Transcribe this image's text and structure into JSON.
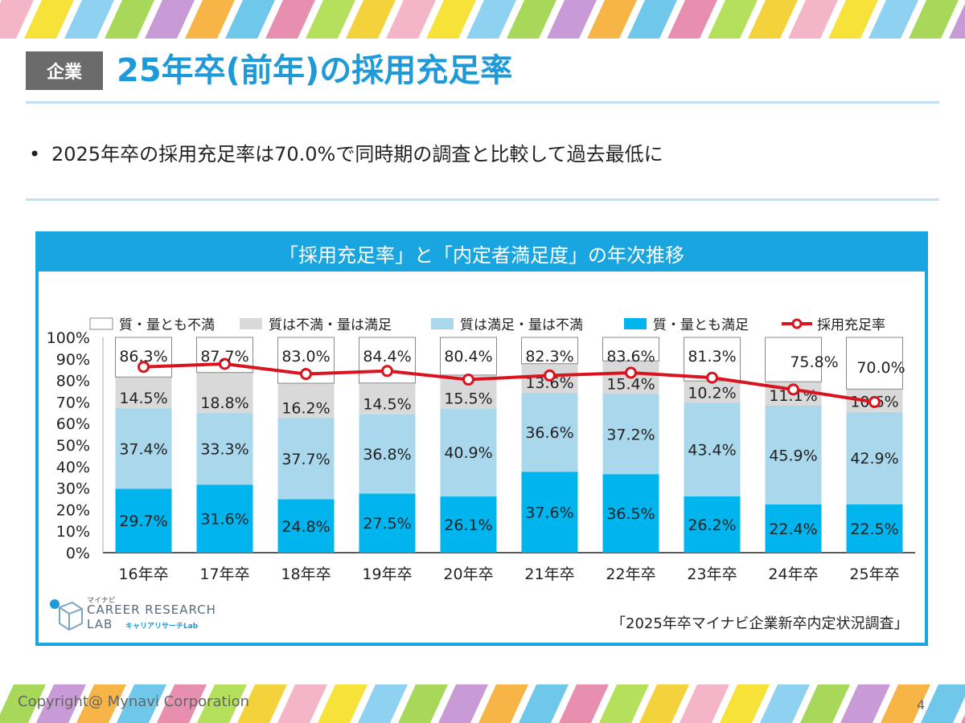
{
  "header": {
    "tag": "企業",
    "title": "25年卒(前年)の採用充足率"
  },
  "bullet": {
    "marker": "•",
    "text": "2025年卒の採用充足率は70.0%で同時期の調査と比較して過去最低に"
  },
  "footer": {
    "copyright": "Copyright@ Mynavi Corporation",
    "page": "4"
  },
  "logo": {
    "small": "マイナビ",
    "line1": "CAREER RESEARCH",
    "line2": "LAB",
    "sub": "キャリアリサーチLab"
  },
  "chart_data": {
    "type": "bar",
    "stacked": true,
    "title": "「採用充足率」と「内定者満足度」の年次推移",
    "source": "「2025年卒マイナビ企業新卒内定状況調査」",
    "categories": [
      "16年卒",
      "17年卒",
      "18年卒",
      "19年卒",
      "20年卒",
      "21年卒",
      "22年卒",
      "23年卒",
      "24年卒",
      "25年卒"
    ],
    "ylim": [
      0,
      100
    ],
    "yticks": [
      "0%",
      "10%",
      "20%",
      "30%",
      "40%",
      "50%",
      "60%",
      "70%",
      "80%",
      "90%",
      "100%"
    ],
    "legend_position": "top",
    "series": [
      {
        "name": "質・量とも満足",
        "color": "#00b4ee",
        "values": [
          29.7,
          31.6,
          24.8,
          27.5,
          26.1,
          37.6,
          36.5,
          26.2,
          22.4,
          22.5
        ],
        "labels": [
          "29.7%",
          "31.6%",
          "24.8%",
          "27.5%",
          "26.1%",
          "37.6%",
          "36.5%",
          "26.2%",
          "22.4%",
          "22.5%"
        ]
      },
      {
        "name": "質は満足・量は不満",
        "color": "#a9d8ec",
        "values": [
          37.4,
          33.3,
          37.7,
          36.8,
          40.9,
          36.6,
          37.2,
          43.4,
          45.9,
          42.9
        ],
        "labels": [
          "37.4%",
          "33.3%",
          "37.7%",
          "36.8%",
          "40.9%",
          "36.6%",
          "37.2%",
          "43.4%",
          "45.9%",
          "42.9%"
        ]
      },
      {
        "name": "質は不満・量は満足",
        "color": "#d9d9d9",
        "values": [
          14.5,
          18.8,
          16.2,
          14.5,
          15.5,
          13.6,
          15.4,
          10.2,
          11.1,
          10.6
        ],
        "labels": [
          "14.5%",
          "18.8%",
          "16.2%",
          "14.5%",
          "15.5%",
          "13.6%",
          "15.4%",
          "10.2%",
          "11.1%",
          "10.6%"
        ]
      },
      {
        "name": "質・量とも不満",
        "color": "#ffffff",
        "values": [
          18.4,
          16.3,
          21.3,
          21.2,
          17.5,
          12.2,
          10.9,
          20.2,
          20.6,
          24.0
        ]
      }
    ],
    "line": {
      "name": "採用充足率",
      "color": "#d9141e",
      "values": [
        86.3,
        87.7,
        83.0,
        84.4,
        80.4,
        82.3,
        83.6,
        81.3,
        75.8,
        70.0
      ],
      "labels": [
        "86.3%",
        "87.7%",
        "83.0%",
        "84.4%",
        "80.4%",
        "82.3%",
        "83.6%",
        "81.3%",
        "75.8%",
        "70.0%"
      ]
    }
  }
}
